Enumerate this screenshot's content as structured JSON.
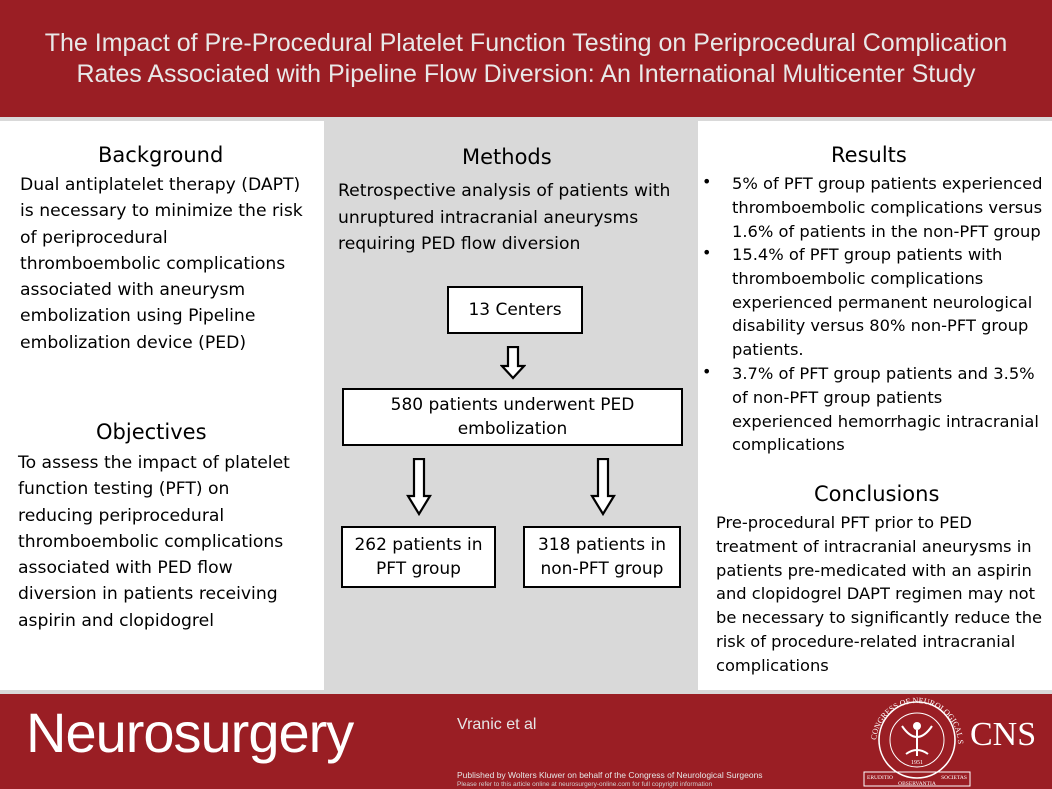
{
  "header": {
    "title_line1": "The Impact of Pre-Procedural Platelet Function Testing on Periprocedural Complication",
    "title_line2": "Rates Associated with Pipeline Flow Diversion: An International Multicenter Study"
  },
  "background": {
    "heading": "Background",
    "lines": [
      "Dual antiplatelet therapy (DAPT)",
      "is necessary to minimize the risk",
      "of periprocedural",
      "thromboembolic complications",
      "associated with aneurysm",
      "embolization using Pipeline",
      "embolization device (PED)"
    ]
  },
  "objectives": {
    "heading": "Objectives",
    "lines": [
      "To assess the impact of platelet",
      "function testing (PFT) on",
      "reducing periprocedural",
      "thromboembolic complications",
      "associated with PED flow",
      "diversion in patients receiving",
      "aspirin and clopidogrel"
    ]
  },
  "methods": {
    "heading": "Methods",
    "lines": [
      "Retrospective analysis of patients with",
      "unruptured intracranial aneurysms",
      "requiring PED flow diversion"
    ],
    "flow": {
      "centers": "13 Centers",
      "patients_line1": "580 patients underwent PED",
      "patients_line2": "embolization",
      "pft_line1": "262 patients in",
      "pft_line2": "PFT group",
      "nonpft_line1": "318 patients in",
      "nonpft_line2": "non-PFT group"
    }
  },
  "results": {
    "heading": "Results",
    "bullet": "•",
    "items": [
      [
        "5% of PFT group patients experienced",
        "thromboembolic complications versus",
        "1.6% of patients in the non-PFT group"
      ],
      [
        "15.4% of PFT group patients with",
        "thromboembolic complications",
        "experienced permanent neurological",
        "disability versus 80% non-PFT group",
        "patients."
      ],
      [
        "3.7% of PFT group patients and 3.5%",
        "of non-PFT group patients",
        "experienced hemorrhagic intracranial",
        "complications"
      ]
    ]
  },
  "conclusions": {
    "heading": "Conclusions",
    "lines": [
      "Pre-procedural PFT prior to PED",
      "treatment of intracranial aneurysms in",
      "patients pre-medicated with an aspirin",
      "and clopidogrel DAPT regimen may not",
      "be necessary to significantly reduce the",
      "risk of procedure-related intracranial",
      "complications"
    ]
  },
  "footer": {
    "brand": "Neurosurgery",
    "authors": "Vranic et al",
    "published": "Published  by Wolters Kluwer on behalf of the Congress  of Neurological  Surgeons",
    "refer": "Please refer to this article online  at neurosurgery-online.com  for full copyright  information",
    "seal_top": "CONGRESS OF NEUROLOGICAL SURGEONS",
    "seal_year": "1951",
    "seal_left": "ERUDITIO",
    "seal_middle": "OBSERVANTIA",
    "seal_right": "SOCIETAS",
    "org": "CNS"
  },
  "colors": {
    "brand_red": "#9a1e24",
    "panel_gray": "#d9d9d9"
  }
}
